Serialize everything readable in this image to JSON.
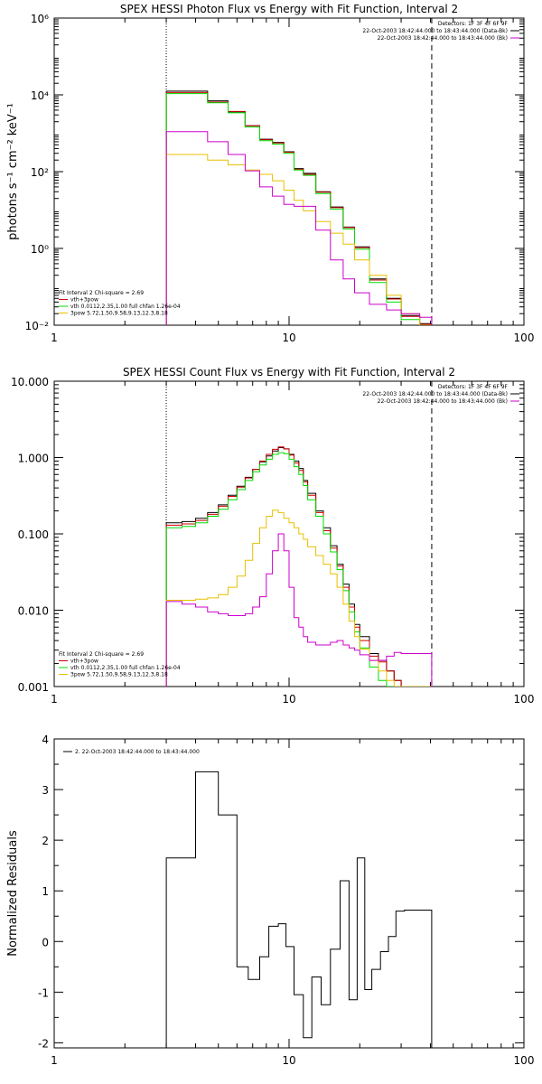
{
  "chart_data": [
    {
      "type": "line",
      "title": "SPEX HESSI Photon Flux vs Energy with Fit Function, Interval 2",
      "ylabel": "photons s⁻¹ cm⁻² keV⁻¹",
      "xlabel": "",
      "xscale": "log",
      "yscale": "log",
      "xlim": [
        1,
        100
      ],
      "ylim": [
        0.01,
        1000000
      ],
      "xticks": [
        {
          "v": 1,
          "label": "1"
        },
        {
          "v": 10,
          "label": "10"
        },
        {
          "v": 100,
          "label": "100"
        }
      ],
      "yticks": [
        {
          "v": 0.01,
          "label": "10⁻²"
        },
        {
          "v": 1,
          "label": "10⁰"
        },
        {
          "v": 100,
          "label": "10²"
        },
        {
          "v": 10000,
          "label": "10⁴"
        },
        {
          "v": 1000000,
          "label": "10⁶"
        }
      ],
      "vlines": [
        {
          "x": 3,
          "style": "dotted"
        },
        {
          "x": 40.5,
          "style": "dashed"
        }
      ],
      "header_lines": [
        "Detectors: 1F 3F 4F 6F 9F",
        "22-Oct-2003 18:42:44.000 to 18:43:44.000 (Data-Bk)",
        "22-Oct-2003 18:42:44.000 to 18:43:44.000 (Bk)"
      ],
      "legend_lines": [
        "Fit Interval 2   Chi-square = 2.69",
        "vth+3pow",
        "vth 0.0112,2.35,1.00  full chfan 1.26e-04",
        "3pow 5.72,1.50,9.58,9.13,12.3,8.18"
      ],
      "edges": [
        3.0,
        3.5,
        4.0,
        4.5,
        5.0,
        5.5,
        6.0,
        6.5,
        7.0,
        7.5,
        8.0,
        8.5,
        9.0,
        9.5,
        10.0,
        10.5,
        11.0,
        11.5,
        12.0,
        13.0,
        14.0,
        15.0,
        16.0,
        17.0,
        18.0,
        19.0,
        20.0,
        22.0,
        24.0,
        26.0,
        28.0,
        30.0,
        33.0,
        36.0,
        40.5
      ],
      "series": [
        {
          "name": "Data-Bk",
          "color": "#000000",
          "values": [
            12500,
            12500,
            12500,
            7000,
            7000,
            3600,
            3600,
            1580,
            1580,
            700,
            700,
            580,
            580,
            330,
            330,
            120,
            120,
            90,
            90,
            30,
            30,
            12,
            12,
            3.6,
            3.6,
            1.1,
            1.1,
            0.16,
            0.16,
            0.05,
            0.05,
            0.018,
            0.018,
            0.011
          ]
        },
        {
          "name": "vth+3pow",
          "color": "#cc0000",
          "values": [
            11500,
            11500,
            11500,
            6500,
            6500,
            3700,
            3700,
            1570,
            1570,
            680,
            680,
            560,
            560,
            320,
            320,
            115,
            115,
            85,
            85,
            29,
            29,
            11.5,
            11.5,
            3.5,
            3.5,
            1.05,
            1.05,
            0.15,
            0.15,
            0.048,
            0.048,
            0.017,
            0.017,
            0.0105
          ]
        },
        {
          "name": "vth",
          "color": "#00dd00",
          "values": [
            10800,
            10800,
            10800,
            6200,
            6200,
            3400,
            3400,
            1450,
            1450,
            640,
            640,
            520,
            520,
            300,
            300,
            110,
            110,
            80,
            80,
            27,
            27,
            10.5,
            10.5,
            3.2,
            3.2,
            0.95,
            0.95,
            0.13,
            0.13,
            0.04,
            0.04,
            0.014,
            0.014,
            0.009
          ]
        },
        {
          "name": "3pow",
          "color": "#e8c000",
          "values": [
            280,
            280,
            280,
            200,
            200,
            150,
            150,
            110,
            110,
            85,
            85,
            58,
            58,
            33,
            33,
            18,
            18,
            9.5,
            9.5,
            5.0,
            5.0,
            2.5,
            2.5,
            1.3,
            1.3,
            0.5,
            0.5,
            0.2,
            0.2,
            0.06,
            0.06,
            0.02,
            0.02,
            0.01
          ]
        },
        {
          "name": "Bk",
          "color": "#cc00cc",
          "values": [
            1100,
            1100,
            1100,
            600,
            600,
            280,
            280,
            105,
            105,
            40,
            40,
            23,
            23,
            14,
            14,
            12.5,
            12.5,
            12.5,
            12.5,
            3.0,
            3.0,
            0.5,
            0.5,
            0.16,
            0.16,
            0.07,
            0.07,
            0.035,
            0.035,
            0.025,
            0.025,
            0.02,
            0.02,
            0.016
          ]
        }
      ]
    },
    {
      "type": "line",
      "title": "SPEX HESSI Count Flux vs Energy with Fit Function, Interval 2",
      "ylabel": "",
      "xlabel": "",
      "xscale": "log",
      "yscale": "log",
      "xlim": [
        1,
        100
      ],
      "ylim": [
        0.001,
        10
      ],
      "xticks": [
        {
          "v": 1,
          "label": "1"
        },
        {
          "v": 10,
          "label": "10"
        },
        {
          "v": 100,
          "label": "100"
        }
      ],
      "yticks": [
        {
          "v": 0.001,
          "label": "0.001"
        },
        {
          "v": 0.01,
          "label": "0.010"
        },
        {
          "v": 0.1,
          "label": "0.100"
        },
        {
          "v": 1,
          "label": "1.000"
        },
        {
          "v": 10,
          "label": "10.000"
        }
      ],
      "vlines": [
        {
          "x": 3,
          "style": "dotted"
        },
        {
          "x": 40.5,
          "style": "dashed"
        }
      ],
      "header_lines": [
        "Detectors: 1F 3F 4F 6F 9F",
        "22-Oct-2003 18:42:44.000 to 18:43:44.000 (Data-Bk)",
        "22-Oct-2003 18:42:44.000 to 18:43:44.000 (Bk)"
      ],
      "legend_lines": [
        "Fit Interval 2   Chi-square = 2.69",
        "vth+3pow",
        "vth 0.0112,2.35,1.00  full chfan 1.26e-04",
        "3pow 5.72,1.50,9.58,9.13,12.3,8.18"
      ],
      "edges": [
        3.0,
        3.5,
        4.0,
        4.5,
        5.0,
        5.5,
        6.0,
        6.5,
        7.0,
        7.5,
        8.0,
        8.5,
        9.0,
        9.5,
        10.0,
        10.5,
        11.0,
        11.5,
        12.0,
        13.0,
        14.0,
        15.0,
        16.0,
        17.0,
        18.0,
        19.0,
        20.0,
        22.0,
        24.0,
        26.0,
        28.0,
        30.0,
        33.0,
        36.0,
        40.5
      ],
      "series": [
        {
          "name": "Data-Bk",
          "color": "#000000",
          "values": [
            0.14,
            0.145,
            0.16,
            0.19,
            0.24,
            0.32,
            0.42,
            0.55,
            0.7,
            0.88,
            1.05,
            1.22,
            1.35,
            1.3,
            1.1,
            0.9,
            0.72,
            0.5,
            0.34,
            0.2,
            0.12,
            0.07,
            0.04,
            0.022,
            0.012,
            0.0065,
            0.0045,
            0.0027,
            0.0022,
            0.0016,
            0.0012,
            0.001,
            0.001,
            0.001
          ]
        },
        {
          "name": "vth+3pow",
          "color": "#cc0000",
          "values": [
            0.13,
            0.135,
            0.15,
            0.18,
            0.23,
            0.31,
            0.41,
            0.54,
            0.7,
            0.9,
            1.1,
            1.28,
            1.38,
            1.3,
            1.08,
            0.85,
            0.68,
            0.48,
            0.32,
            0.19,
            0.11,
            0.065,
            0.038,
            0.02,
            0.011,
            0.006,
            0.004,
            0.0025,
            0.0021,
            0.0016,
            0.0012,
            0.001,
            0.001,
            0.001
          ]
        },
        {
          "name": "vth",
          "color": "#00dd00",
          "values": [
            0.12,
            0.125,
            0.14,
            0.17,
            0.21,
            0.28,
            0.38,
            0.5,
            0.65,
            0.8,
            0.95,
            1.1,
            1.16,
            1.12,
            0.95,
            0.76,
            0.6,
            0.43,
            0.28,
            0.17,
            0.1,
            0.058,
            0.034,
            0.018,
            0.0095,
            0.0052,
            0.0032,
            0.0018,
            0.0012,
            0.001,
            0.001,
            0.001,
            0.001,
            0.001
          ]
        },
        {
          "name": "3pow",
          "color": "#e8c000",
          "values": [
            0.0135,
            0.0135,
            0.014,
            0.0145,
            0.016,
            0.02,
            0.028,
            0.045,
            0.075,
            0.12,
            0.17,
            0.205,
            0.19,
            0.16,
            0.14,
            0.12,
            0.1,
            0.085,
            0.068,
            0.052,
            0.04,
            0.03,
            0.02,
            0.012,
            0.0072,
            0.0045,
            0.0031,
            0.0022,
            0.0016,
            0.0012,
            0.001,
            0.001,
            0.001,
            0.001
          ]
        },
        {
          "name": "Bk",
          "color": "#cc00cc",
          "values": [
            0.013,
            0.012,
            0.011,
            0.0095,
            0.009,
            0.0085,
            0.0085,
            0.009,
            0.011,
            0.015,
            0.03,
            0.06,
            0.1,
            0.06,
            0.02,
            0.008,
            0.006,
            0.0045,
            0.0038,
            0.0035,
            0.0035,
            0.0038,
            0.004,
            0.0035,
            0.0032,
            0.003,
            0.0026,
            0.0022,
            0.0022,
            0.0025,
            0.0028,
            0.0027,
            0.0027,
            0.0027
          ]
        }
      ]
    },
    {
      "type": "line",
      "title": "",
      "ylabel": "Normalized Residuals",
      "xlabel": "",
      "xscale": "log",
      "yscale": "linear",
      "xlim": [
        1,
        100
      ],
      "ylim": [
        -2.1,
        4.0
      ],
      "xticks": [
        {
          "v": 1,
          "label": "1"
        },
        {
          "v": 10,
          "label": "10"
        },
        {
          "v": 100,
          "label": "100"
        }
      ],
      "yticks": [
        {
          "v": -2,
          "label": "-2"
        },
        {
          "v": -1,
          "label": "-1"
        },
        {
          "v": 0,
          "label": "0"
        },
        {
          "v": 1,
          "label": "1"
        },
        {
          "v": 2,
          "label": "2"
        },
        {
          "v": 3,
          "label": "3"
        },
        {
          "v": 4,
          "label": "4"
        }
      ],
      "legend_lines": [
        "2. 22-Oct-2003 18:42:44.000 to 18:43:44.000"
      ],
      "edges": [
        3.0,
        4.0,
        5.0,
        6.0,
        6.7,
        7.5,
        8.2,
        9.0,
        9.7,
        10.5,
        11.5,
        12.5,
        13.7,
        15.0,
        16.5,
        18.0,
        19.5,
        21.0,
        22.5,
        24.5,
        26.5,
        28.5,
        31.0,
        33.5,
        36.5,
        40.5
      ],
      "series": [
        {
          "name": "",
          "color": "#000000",
          "values": [
            1.65,
            3.35,
            2.5,
            -0.5,
            -0.75,
            -0.3,
            0.3,
            0.35,
            -0.1,
            -1.05,
            -1.9,
            -0.7,
            -1.25,
            -0.15,
            1.2,
            -1.15,
            1.65,
            -0.95,
            -0.55,
            -0.2,
            0.1,
            0.6,
            0.62,
            0.62,
            0.62
          ]
        }
      ]
    }
  ]
}
